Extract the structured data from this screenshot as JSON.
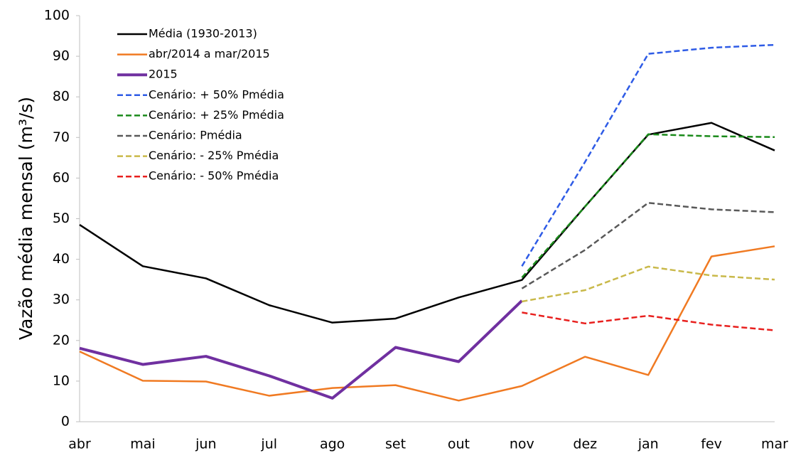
{
  "chart_data": {
    "type": "line",
    "ylabel": "Vazão média mensal (m³/s)",
    "categories": [
      "abr",
      "mai",
      "jun",
      "jul",
      "ago",
      "set",
      "out",
      "nov",
      "dez",
      "jan",
      "fev",
      "mar"
    ],
    "ylim": [
      0,
      100
    ],
    "yticks": [
      0,
      10,
      20,
      30,
      40,
      50,
      60,
      70,
      80,
      90,
      100
    ],
    "grid": false,
    "legend": "upper left",
    "series": [
      {
        "name": "Média (1930-2013)",
        "color": "#000000",
        "style": "solid",
        "values": [
          48.5,
          38.3,
          35.3,
          28.7,
          24.4,
          25.4,
          30.6,
          34.9,
          53.0,
          70.7,
          73.6,
          66.8
        ]
      },
      {
        "name": "abr/2014 a mar/2015",
        "color": "#f07a22",
        "style": "solid",
        "values": [
          17.3,
          10.1,
          9.9,
          6.4,
          8.3,
          9.0,
          5.2,
          8.8,
          16.0,
          11.5,
          40.7,
          43.2
        ]
      },
      {
        "name": "2015",
        "color": "#7030a0",
        "style": "bold",
        "values": [
          18.1,
          14.1,
          16.1,
          11.3,
          5.8,
          18.3,
          14.8,
          29.8,
          null,
          null,
          null,
          null
        ]
      },
      {
        "name": "Cenário: + 50% Pmédia",
        "color": "#2e5be6",
        "style": "dashed",
        "values": [
          null,
          null,
          null,
          null,
          null,
          null,
          null,
          38.3,
          64.0,
          90.6,
          92.1,
          92.8
        ]
      },
      {
        "name": "Cenário: + 25% Pmédia",
        "color": "#1a8a1a",
        "style": "dashed",
        "values": [
          null,
          null,
          null,
          null,
          null,
          null,
          null,
          35.5,
          53.0,
          70.8,
          70.3,
          70.1
        ]
      },
      {
        "name": "Cenário: Pmédia",
        "color": "#595959",
        "style": "dashed",
        "values": [
          null,
          null,
          null,
          null,
          null,
          null,
          null,
          32.8,
          42.3,
          53.9,
          52.3,
          51.6
        ]
      },
      {
        "name": "Cenário: - 25% Pmédia",
        "color": "#c9b94a",
        "style": "dashed",
        "values": [
          null,
          null,
          null,
          null,
          null,
          null,
          null,
          29.6,
          32.4,
          38.2,
          36.0,
          35.0
        ]
      },
      {
        "name": "Cenário: - 50% Pmédia",
        "color": "#e8201e",
        "style": "dashed",
        "values": [
          null,
          null,
          null,
          null,
          null,
          null,
          null,
          26.9,
          24.2,
          26.1,
          23.9,
          22.5
        ]
      }
    ]
  }
}
